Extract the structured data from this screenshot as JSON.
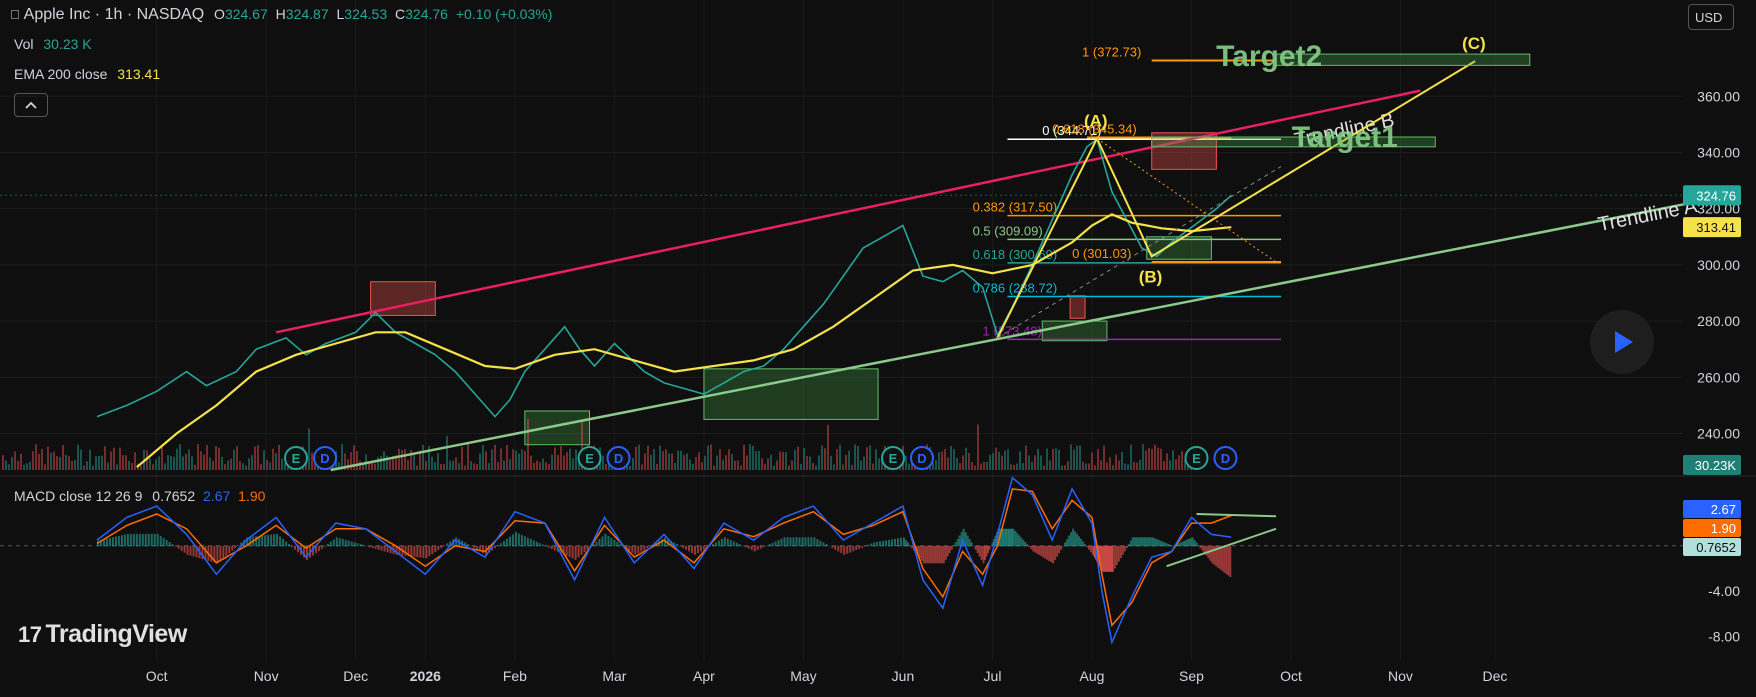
{
  "header": {
    "symbol_title": "Apple Inc · 1h · NASDAQ",
    "ohlc": [
      {
        "label": "O",
        "value": "324.67"
      },
      {
        "label": "H",
        "value": "324.87"
      },
      {
        "label": "L",
        "value": "324.53"
      },
      {
        "label": "C",
        "value": "324.76"
      }
    ],
    "change": "+0.10 (+0.03%)",
    "vol_label": "Vol",
    "vol_value": "30.23 K",
    "ema_label": "EMA 200 close",
    "ema_value": "313.41",
    "currency_button": "USD",
    "macd_label": "MACD close 12 26 9",
    "macd_values": [
      "0.7652",
      "2.67",
      "1.90"
    ]
  },
  "branding": {
    "logo_text": "TradingView"
  },
  "icons": [
    "apple-icon",
    "chevron-up-icon",
    "play-icon",
    "earnings-icon",
    "dividend-icon"
  ],
  "colors": {
    "up": "#26a69a",
    "down": "#ef5350",
    "ema": "#f5e14a",
    "trend_pink": "#e91e63",
    "trend_green": "#8bc98b",
    "macd": "#2962ff",
    "signal": "#ff6d00",
    "wave": "#f5e14a"
  },
  "chart_data": {
    "type": "line",
    "title": "Apple Inc · 1h · NASDAQ",
    "x_ticks": [
      "Oct",
      "Nov",
      "Dec",
      "2026",
      "Feb",
      "Mar",
      "Apr",
      "May",
      "Jun",
      "Jul",
      "Aug",
      "Sep",
      "Oct",
      "Nov",
      "Dec"
    ],
    "x_tick_pos": [
      0.6,
      1.7,
      2.6,
      3.3,
      4.2,
      5.2,
      6.1,
      7.1,
      8.1,
      9.0,
      10.0,
      11.0,
      12.0,
      13.1,
      14.05
    ],
    "last_index": 11.0,
    "y_ticks": [
      "240.00",
      "260.00",
      "280.00",
      "300.00",
      "320.00",
      "340.00",
      "360.00"
    ],
    "ylim": [
      227,
      385
    ],
    "price_series": [
      [
        0.0,
        246
      ],
      [
        0.3,
        250
      ],
      [
        0.6,
        255
      ],
      [
        0.9,
        262
      ],
      [
        1.1,
        257
      ],
      [
        1.4,
        262
      ],
      [
        1.6,
        270
      ],
      [
        1.9,
        274
      ],
      [
        2.1,
        268
      ],
      [
        2.3,
        272
      ],
      [
        2.6,
        276
      ],
      [
        2.8,
        283
      ],
      [
        3.0,
        276
      ],
      [
        3.2,
        272
      ],
      [
        3.4,
        268
      ],
      [
        3.6,
        262
      ],
      [
        3.8,
        254
      ],
      [
        4.0,
        246
      ],
      [
        4.15,
        252
      ],
      [
        4.3,
        262
      ],
      [
        4.5,
        270
      ],
      [
        4.7,
        278
      ],
      [
        4.85,
        270
      ],
      [
        5.0,
        264
      ],
      [
        5.2,
        272
      ],
      [
        5.35,
        267
      ],
      [
        5.5,
        262
      ],
      [
        5.7,
        258
      ],
      [
        5.9,
        256
      ],
      [
        6.1,
        254
      ],
      [
        6.3,
        258
      ],
      [
        6.5,
        262
      ],
      [
        6.7,
        264
      ],
      [
        6.9,
        270
      ],
      [
        7.1,
        278
      ],
      [
        7.3,
        286
      ],
      [
        7.5,
        296
      ],
      [
        7.7,
        306
      ],
      [
        7.9,
        310
      ],
      [
        8.1,
        314
      ],
      [
        8.3,
        296
      ],
      [
        8.5,
        294
      ],
      [
        8.7,
        298
      ],
      [
        8.9,
        292
      ],
      [
        9.05,
        275
      ],
      [
        9.2,
        285
      ],
      [
        9.4,
        300
      ],
      [
        9.6,
        316
      ],
      [
        9.8,
        332
      ],
      [
        9.95,
        342
      ],
      [
        10.05,
        344.7
      ],
      [
        10.2,
        326
      ],
      [
        10.35,
        316
      ],
      [
        10.5,
        306
      ],
      [
        10.65,
        303
      ],
      [
        10.8,
        308
      ],
      [
        10.95,
        312
      ],
      [
        11.1,
        316
      ],
      [
        11.25,
        320
      ],
      [
        11.4,
        324.76
      ]
    ],
    "ema_series": [
      [
        0.4,
        228
      ],
      [
        0.8,
        240
      ],
      [
        1.2,
        250
      ],
      [
        1.6,
        262
      ],
      [
        2.0,
        268
      ],
      [
        2.4,
        272
      ],
      [
        2.8,
        276
      ],
      [
        3.1,
        276
      ],
      [
        3.5,
        270
      ],
      [
        3.9,
        264
      ],
      [
        4.2,
        263
      ],
      [
        4.6,
        268
      ],
      [
        5.0,
        270
      ],
      [
        5.4,
        266
      ],
      [
        5.8,
        262
      ],
      [
        6.2,
        264
      ],
      [
        6.6,
        266
      ],
      [
        7.0,
        270
      ],
      [
        7.4,
        278
      ],
      [
        7.8,
        288
      ],
      [
        8.2,
        298
      ],
      [
        8.6,
        300
      ],
      [
        9.0,
        297
      ],
      [
        9.4,
        300
      ],
      [
        9.8,
        308
      ],
      [
        10.0,
        314
      ],
      [
        10.2,
        318
      ],
      [
        10.4,
        315
      ],
      [
        10.7,
        313
      ],
      [
        11.0,
        312
      ],
      [
        11.4,
        313.41
      ]
    ],
    "volume": {
      "ylim": [
        0,
        60
      ],
      "label": "Vol"
    },
    "macd": {
      "ylim": [
        -10.5,
        6.5
      ],
      "y_ticks": [
        "-4.00",
        "-8.00"
      ],
      "last_values": {
        "macd": "0.7652",
        "signal": "2.67",
        "hist": "1.90"
      },
      "macd_series": [
        [
          0.0,
          0.5
        ],
        [
          0.3,
          2.5
        ],
        [
          0.6,
          3.5
        ],
        [
          0.9,
          1.0
        ],
        [
          1.2,
          -2.5
        ],
        [
          1.5,
          0.5
        ],
        [
          1.8,
          2.5
        ],
        [
          2.1,
          -1.0
        ],
        [
          2.4,
          2.0
        ],
        [
          2.7,
          1.5
        ],
        [
          3.0,
          -0.5
        ],
        [
          3.3,
          -2.5
        ],
        [
          3.6,
          0.5
        ],
        [
          3.9,
          -1.0
        ],
        [
          4.2,
          3.0
        ],
        [
          4.5,
          2.0
        ],
        [
          4.8,
          -3.0
        ],
        [
          5.1,
          2.5
        ],
        [
          5.4,
          -1.5
        ],
        [
          5.7,
          1.0
        ],
        [
          6.0,
          -2.0
        ],
        [
          6.3,
          2.0
        ],
        [
          6.6,
          0.5
        ],
        [
          6.9,
          2.5
        ],
        [
          7.2,
          3.5
        ],
        [
          7.5,
          0.5
        ],
        [
          7.8,
          2.0
        ],
        [
          8.1,
          3.5
        ],
        [
          8.3,
          -3.0
        ],
        [
          8.5,
          -5.5
        ],
        [
          8.7,
          0.5
        ],
        [
          8.9,
          -3.5
        ],
        [
          9.05,
          1.0
        ],
        [
          9.2,
          6.0
        ],
        [
          9.4,
          4.5
        ],
        [
          9.6,
          0.5
        ],
        [
          9.8,
          5.0
        ],
        [
          10.0,
          2.0
        ],
        [
          10.1,
          -4.0
        ],
        [
          10.2,
          -8.5
        ],
        [
          10.4,
          -4.5
        ],
        [
          10.6,
          -1.0
        ],
        [
          10.8,
          -0.5
        ],
        [
          11.0,
          2.5
        ],
        [
          11.2,
          1.0
        ],
        [
          11.4,
          0.77
        ]
      ],
      "signal_series": [
        [
          0.0,
          0.2
        ],
        [
          0.3,
          1.8
        ],
        [
          0.6,
          2.8
        ],
        [
          0.9,
          1.5
        ],
        [
          1.2,
          -1.5
        ],
        [
          1.5,
          0.0
        ],
        [
          1.8,
          1.8
        ],
        [
          2.1,
          -0.2
        ],
        [
          2.4,
          1.5
        ],
        [
          2.7,
          1.5
        ],
        [
          3.0,
          0.0
        ],
        [
          3.3,
          -1.8
        ],
        [
          3.6,
          0.0
        ],
        [
          3.9,
          -0.5
        ],
        [
          4.2,
          2.2
        ],
        [
          4.5,
          2.0
        ],
        [
          4.8,
          -2.2
        ],
        [
          5.1,
          1.8
        ],
        [
          5.4,
          -1.0
        ],
        [
          5.7,
          0.5
        ],
        [
          6.0,
          -1.5
        ],
        [
          6.3,
          1.5
        ],
        [
          6.6,
          0.8
        ],
        [
          6.9,
          2.0
        ],
        [
          7.2,
          3.0
        ],
        [
          7.5,
          1.0
        ],
        [
          7.8,
          1.8
        ],
        [
          8.1,
          3.0
        ],
        [
          8.3,
          -2.0
        ],
        [
          8.5,
          -4.5
        ],
        [
          8.7,
          -0.5
        ],
        [
          8.9,
          -2.5
        ],
        [
          9.05,
          0.0
        ],
        [
          9.2,
          5.0
        ],
        [
          9.4,
          4.8
        ],
        [
          9.6,
          1.5
        ],
        [
          9.8,
          4.0
        ],
        [
          10.0,
          2.5
        ],
        [
          10.1,
          -2.5
        ],
        [
          10.2,
          -7.0
        ],
        [
          10.4,
          -5.0
        ],
        [
          10.6,
          -1.5
        ],
        [
          10.8,
          -0.5
        ],
        [
          11.0,
          2.0
        ],
        [
          11.2,
          2.0
        ],
        [
          11.4,
          2.67
        ]
      ]
    },
    "fib_retracement": {
      "x_range": [
        9.15,
        11.9
      ],
      "levels": [
        {
          "label": "0 (344.71)",
          "price": 344.71,
          "color": "#ffffff",
          "label_x": 9.5
        },
        {
          "label": "0.382 (317.50)",
          "price": 317.5,
          "color": "#ff9800",
          "label_x": 8.8
        },
        {
          "label": "0.5 (309.09)",
          "price": 309.09,
          "color": "#8bc98b",
          "label_x": 8.8
        },
        {
          "label": "0.618 (300.69)",
          "price": 300.69,
          "color": "#26a69a",
          "label_x": 8.8
        },
        {
          "label": "0.786 (288.72)",
          "price": 288.72,
          "color": "#00bcd4",
          "label_x": 8.8
        },
        {
          "label": "1 (273.48)",
          "price": 273.48,
          "color": "#9c27b0",
          "label_x": 8.9
        }
      ]
    },
    "fib_extension": {
      "levels": [
        {
          "label": "0.618 (345.34)",
          "price": 345.34,
          "color": "#ff9800",
          "label_x": 9.6,
          "x_range": [
            9.95,
            11.4
          ]
        },
        {
          "label": "0 (301.03)",
          "price": 301.03,
          "color": "#ff9800",
          "label_x": 9.8,
          "x_range": [
            10.6,
            11.9
          ]
        },
        {
          "label": "1 (372.73)",
          "price": 372.73,
          "color": "#ff9800",
          "label_x": 9.9,
          "x_range": [
            10.6,
            11.85
          ]
        }
      ]
    },
    "trendlines": [
      {
        "name": "Trendline A",
        "from": [
          2.35,
          227
        ],
        "to": [
          16.3,
          324
        ],
        "color": "#8bc98b",
        "label_x": 15.1,
        "label_y": 312
      },
      {
        "name": "Trendline B",
        "from": [
          1.8,
          276
        ],
        "to": [
          13.3,
          362
        ],
        "color": "#e91e63",
        "label_x": 12.05,
        "label_y": 342
      }
    ],
    "trend_b_label": "Trendline B",
    "elliott_wave": {
      "points": [
        {
          "label": "",
          "x": 9.05,
          "y": 274
        },
        {
          "label": "(A)",
          "x": 10.05,
          "y": 345.0
        },
        {
          "label": "(B)",
          "x": 10.6,
          "y": 303
        },
        {
          "label": "(C)",
          "x": 13.85,
          "y": 372.5
        }
      ]
    },
    "targets": [
      {
        "name": "Target1",
        "price_low": 342,
        "price_high": 345.5,
        "x_range": [
          10.6,
          13.45
        ]
      },
      {
        "name": "Target2",
        "price_low": 371,
        "price_high": 375,
        "x_range": [
          11.85,
          14.4
        ]
      }
    ],
    "zones": [
      {
        "x_range": [
          2.75,
          3.4
        ],
        "price": [
          282,
          294
        ],
        "color": "red"
      },
      {
        "x_range": [
          4.3,
          4.95
        ],
        "price": [
          236,
          248
        ],
        "color": "green"
      },
      {
        "x_range": [
          6.1,
          7.85
        ],
        "price": [
          245,
          263
        ],
        "color": "green"
      },
      {
        "x_range": [
          9.5,
          10.15
        ],
        "price": [
          273,
          280
        ],
        "color": "green"
      },
      {
        "x_range": [
          9.78,
          9.93
        ],
        "price": [
          281,
          289
        ],
        "color": "red"
      },
      {
        "x_range": [
          10.55,
          11.2
        ],
        "price": [
          302,
          310
        ],
        "color": "green"
      },
      {
        "x_range": [
          10.6,
          11.25
        ],
        "price": [
          334,
          347
        ],
        "color": "red"
      }
    ],
    "event_markers": [
      {
        "x": 2.0,
        "labels": [
          "E",
          "D"
        ]
      },
      {
        "x": 4.95,
        "labels": [
          "E",
          "D"
        ]
      },
      {
        "x": 8.0,
        "labels": [
          "E",
          "D"
        ]
      },
      {
        "x": 11.05,
        "labels": [
          "E",
          "D"
        ]
      }
    ],
    "price_tags": [
      {
        "value": "324.76",
        "price": 324.76,
        "color": "#26a69a"
      },
      {
        "value": "313.41",
        "price": 313.41,
        "color": "#f5e14a"
      }
    ],
    "vol_tag": "30.23K",
    "macd_tags": [
      {
        "value": "2.67",
        "macd": 2.67,
        "color": "#2962ff"
      },
      {
        "value": "1.90",
        "macd": 1.9,
        "color": "#ff6d00"
      },
      {
        "value": "0.7652",
        "macd": 0.77,
        "color": "#b2dfdb"
      }
    ]
  }
}
